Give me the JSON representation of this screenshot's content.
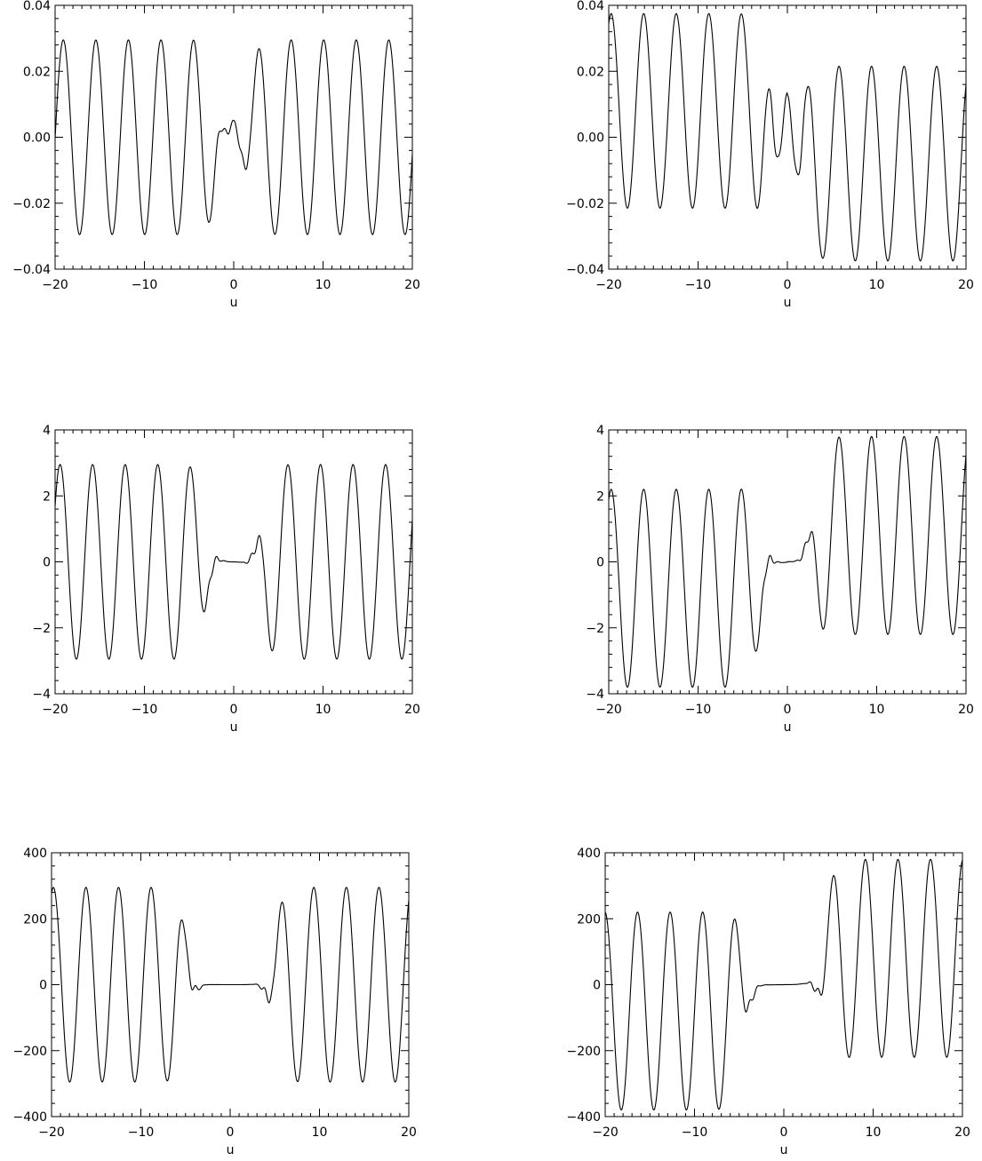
{
  "chart_data": [
    {
      "type": "line",
      "xlabel": "u",
      "xlim": [
        -20,
        20
      ],
      "ylim": [
        -0.04,
        0.04
      ],
      "x_ticks": [
        -20,
        -10,
        0,
        10,
        20
      ],
      "x_tick_labels": [
        "−20",
        "−10",
        "0",
        "10",
        "20"
      ],
      "y_ticks": [
        -0.04,
        -0.02,
        0,
        0.02,
        0.04
      ],
      "y_tick_labels": [
        "−0.04",
        "−0.02",
        "0.00",
        "0.02",
        "0.04"
      ],
      "series": [
        {
          "amp_left": 0.0295,
          "amp_right": 0.0295,
          "omega": 1.724,
          "phase": 1.48,
          "offset": 0.0,
          "core_halfwidth": 1.8,
          "core_scale": 0.16
        }
      ]
    },
    {
      "type": "line",
      "xlabel": "u",
      "xlim": [
        -20,
        20
      ],
      "ylim": [
        -0.04,
        0.04
      ],
      "x_ticks": [
        -20,
        -10,
        0,
        10,
        20
      ],
      "x_tick_labels": [
        "−20",
        "−10",
        "0",
        "10",
        "20"
      ],
      "y_ticks": [
        -0.04,
        -0.02,
        0,
        0.02,
        0.04
      ],
      "y_tick_labels": [
        "−0.04",
        "−0.02",
        "0.00",
        "0.02",
        "0.04"
      ],
      "series": [
        {
          "amp_left": 0.0295,
          "amp_right": 0.0295,
          "omega": 1.724,
          "phase": 2.6,
          "offset_left": 0.008,
          "offset_right": -0.008,
          "core_halfwidth": 2.2,
          "core_scale": 0.45
        }
      ]
    },
    {
      "type": "line",
      "xlabel": "u",
      "xlim": [
        -20,
        20
      ],
      "ylim": [
        -4,
        4
      ],
      "x_ticks": [
        -20,
        -10,
        0,
        10,
        20
      ],
      "x_tick_labels": [
        "−20",
        "−10",
        "0",
        "10",
        "20"
      ],
      "y_ticks": [
        -4,
        -2,
        0,
        2,
        4
      ],
      "y_tick_labels": [
        "−4",
        "−2",
        "0",
        "2",
        "4"
      ],
      "series": [
        {
          "amp_left": 2.95,
          "amp_right": 2.95,
          "omega": 1.724,
          "phase": 2.1,
          "offset": 0.0,
          "core_halfwidth": 3.2,
          "core_scale": 0.0
        }
      ]
    },
    {
      "type": "line",
      "xlabel": "u",
      "xlim": [
        -20,
        20
      ],
      "ylim": [
        -4,
        4
      ],
      "x_ticks": [
        -20,
        -10,
        0,
        10,
        20
      ],
      "x_tick_labels": [
        "−20",
        "−10",
        "0",
        "10",
        "20"
      ],
      "y_ticks": [
        -4,
        -2,
        0,
        2,
        4
      ],
      "y_tick_labels": [
        "−4",
        "−2",
        "0",
        "2",
        "4"
      ],
      "series": [
        {
          "amp_left": 3.0,
          "amp_right": 3.0,
          "omega": 1.724,
          "phase": 2.6,
          "offset_left": -0.8,
          "offset_right": 0.8,
          "core_halfwidth": 3.0,
          "core_scale": 0.0
        }
      ]
    },
    {
      "type": "line",
      "xlabel": "u",
      "xlim": [
        -20,
        20
      ],
      "ylim": [
        -400,
        400
      ],
      "x_ticks": [
        -20,
        -10,
        0,
        10,
        20
      ],
      "x_tick_labels": [
        "−20",
        "−10",
        "0",
        "10",
        "20"
      ],
      "y_ticks": [
        -400,
        -200,
        0,
        200,
        400
      ],
      "y_tick_labels": [
        "−400",
        "−200",
        "0",
        "200",
        "400"
      ],
      "series": [
        {
          "amp_left": 295,
          "amp_right": 295,
          "omega": 1.724,
          "phase": 2.7,
          "offset": 0,
          "core_halfwidth": 5.0,
          "core_scale": 0.0
        }
      ]
    },
    {
      "type": "line",
      "xlabel": "u",
      "xlim": [
        -20,
        20
      ],
      "ylim": [
        -400,
        400
      ],
      "x_ticks": [
        -20,
        -10,
        0,
        10,
        20
      ],
      "x_tick_labels": [
        "−20",
        "−10",
        "0",
        "10",
        "20"
      ],
      "y_ticks": [
        -400,
        -200,
        0,
        200,
        400
      ],
      "y_tick_labels": [
        "−400",
        "−200",
        "0",
        "200",
        "400"
      ],
      "series": [
        {
          "amp_left": 300,
          "amp_right": 300,
          "omega": 1.724,
          "phase": 3.1,
          "offset_left": -80,
          "offset_right": 80,
          "core_halfwidth": 4.6,
          "core_scale": 0.0
        }
      ]
    }
  ]
}
